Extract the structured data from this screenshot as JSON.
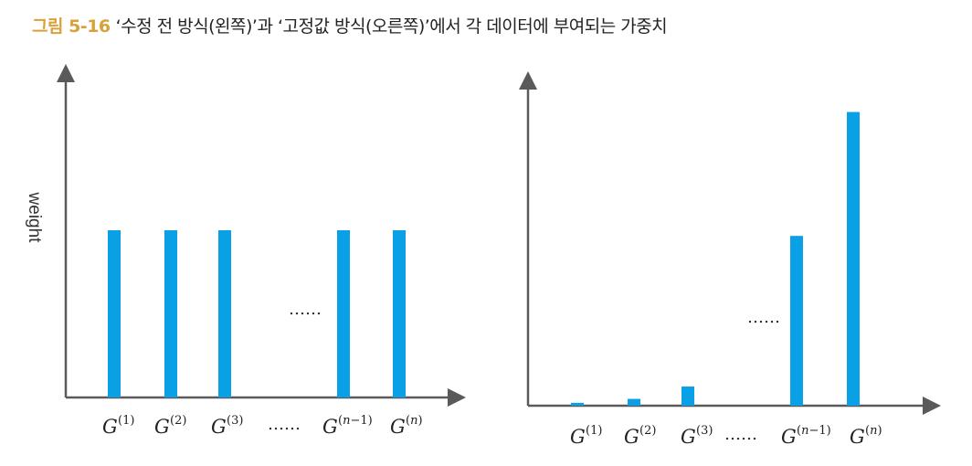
{
  "caption": {
    "label": "그림 5-16",
    "text": "‘수정 전 방식(왼쪽)’과 ‘고정값 방식(오른쪽)’에서 각 데이터에 부여되는 가중치"
  },
  "colors": {
    "bar": "#0aa0e6",
    "axis": "#5a5a5a",
    "caption_label": "#d9a13a"
  },
  "chart_data": [
    {
      "type": "bar",
      "ylabel": "weight",
      "categories": [
        "G(1)",
        "G(2)",
        "G(3)",
        "……",
        "G(n−1)",
        "G(n)"
      ],
      "values": [
        1,
        1,
        1,
        null,
        1,
        1
      ],
      "ellipsis_label": "……",
      "ellipsis_in_plot": "……"
    },
    {
      "type": "bar",
      "ylabel": "",
      "categories": [
        "G(1)",
        "G(2)",
        "G(3)",
        "……",
        "G(n−1)",
        "G(n)"
      ],
      "values": [
        0.016,
        0.038,
        0.107,
        null,
        0.948,
        1.64
      ],
      "ellipsis_label": "……",
      "ellipsis_in_plot": "……"
    }
  ]
}
